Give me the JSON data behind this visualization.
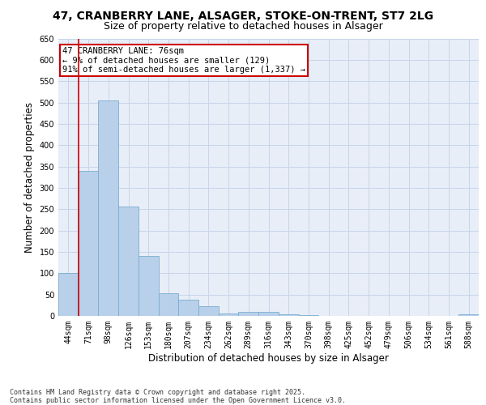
{
  "title_line1": "47, CRANBERRY LANE, ALSAGER, STOKE-ON-TRENT, ST7 2LG",
  "title_line2": "Size of property relative to detached houses in Alsager",
  "xlabel": "Distribution of detached houses by size in Alsager",
  "ylabel": "Number of detached properties",
  "categories": [
    "44sqm",
    "71sqm",
    "98sqm",
    "126sqm",
    "153sqm",
    "180sqm",
    "207sqm",
    "234sqm",
    "262sqm",
    "289sqm",
    "316sqm",
    "343sqm",
    "370sqm",
    "398sqm",
    "425sqm",
    "452sqm",
    "479sqm",
    "506sqm",
    "534sqm",
    "561sqm",
    "588sqm"
  ],
  "values": [
    100,
    340,
    505,
    257,
    140,
    53,
    38,
    22,
    6,
    10,
    10,
    3,
    1,
    0,
    0,
    0,
    0,
    0,
    0,
    0,
    3
  ],
  "bar_color": "#b8d0ea",
  "bar_edge_color": "#7aadcf",
  "vline_color": "#cc0000",
  "annotation_text": "47 CRANBERRY LANE: 76sqm\n← 9% of detached houses are smaller (129)\n91% of semi-detached houses are larger (1,337) →",
  "annotation_box_edgecolor": "#cc0000",
  "annotation_box_facecolor": "white",
  "ylim": [
    0,
    650
  ],
  "yticks": [
    0,
    50,
    100,
    150,
    200,
    250,
    300,
    350,
    400,
    450,
    500,
    550,
    600,
    650
  ],
  "grid_color": "#c8d4e8",
  "background_color": "#e8eef8",
  "footer_text": "Contains HM Land Registry data © Crown copyright and database right 2025.\nContains public sector information licensed under the Open Government Licence v3.0.",
  "title_fontsize": 10,
  "subtitle_fontsize": 9,
  "axis_label_fontsize": 8.5,
  "tick_fontsize": 7,
  "annotation_fontsize": 7.5,
  "footer_fontsize": 6
}
